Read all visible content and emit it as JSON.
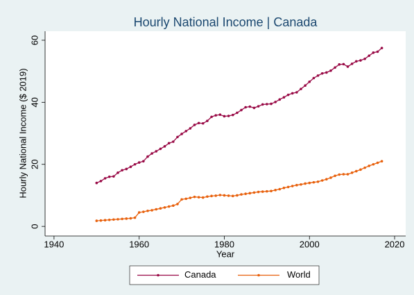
{
  "chart_data": {
    "type": "line",
    "title": "Hourly National Income | Canada",
    "x_label": "Year",
    "y_label": "Hourly National Income ($ 2019)",
    "x": [
      1950,
      1951,
      1952,
      1953,
      1954,
      1955,
      1956,
      1957,
      1958,
      1959,
      1960,
      1961,
      1962,
      1963,
      1964,
      1965,
      1966,
      1967,
      1968,
      1969,
      1970,
      1971,
      1972,
      1973,
      1974,
      1975,
      1976,
      1977,
      1978,
      1979,
      1980,
      1981,
      1982,
      1983,
      1984,
      1985,
      1986,
      1987,
      1988,
      1989,
      1990,
      1991,
      1992,
      1993,
      1994,
      1995,
      1996,
      1997,
      1998,
      1999,
      2000,
      2001,
      2002,
      2003,
      2004,
      2005,
      2006,
      2007,
      2008,
      2009,
      2010,
      2011,
      2012,
      2013,
      2014,
      2015,
      2016,
      2017
    ],
    "series": [
      {
        "name": "Canada",
        "color": "#990a46",
        "values": [
          14.0,
          14.6,
          15.5,
          16.0,
          16.1,
          17.3,
          18.1,
          18.5,
          19.2,
          20.0,
          20.6,
          21.0,
          22.5,
          23.5,
          24.2,
          25.0,
          25.8,
          26.8,
          27.3,
          28.8,
          29.8,
          30.7,
          31.6,
          32.7,
          33.3,
          33.2,
          34.0,
          35.3,
          35.8,
          36.0,
          35.5,
          35.6,
          35.9,
          36.6,
          37.5,
          38.4,
          38.6,
          38.2,
          38.7,
          39.3,
          39.4,
          39.5,
          40.1,
          40.9,
          41.6,
          42.4,
          42.9,
          43.2,
          44.3,
          45.4,
          46.6,
          47.8,
          48.6,
          49.3,
          49.6,
          50.2,
          51.2,
          52.2,
          52.3,
          51.5,
          52.4,
          53.2,
          53.5,
          54.0,
          55.0,
          56.0,
          56.3,
          57.5
        ]
      },
      {
        "name": "World",
        "color": "#e8600c",
        "values": [
          1.8,
          1.9,
          2.0,
          2.1,
          2.2,
          2.3,
          2.4,
          2.5,
          2.6,
          2.8,
          4.5,
          4.7,
          5.0,
          5.2,
          5.5,
          5.8,
          6.1,
          6.4,
          6.7,
          7.2,
          8.7,
          8.9,
          9.2,
          9.5,
          9.4,
          9.3,
          9.6,
          9.8,
          9.9,
          10.1,
          10.0,
          9.9,
          9.8,
          10.0,
          10.3,
          10.5,
          10.7,
          10.9,
          11.1,
          11.2,
          11.3,
          11.4,
          11.7,
          12.0,
          12.4,
          12.7,
          13.0,
          13.3,
          13.5,
          13.8,
          14.0,
          14.2,
          14.4,
          14.8,
          15.2,
          15.7,
          16.3,
          16.7,
          16.8,
          16.8,
          17.3,
          17.8,
          18.3,
          18.9,
          19.5,
          20.0,
          20.5,
          21.0
        ]
      }
    ],
    "xlim": [
      1937.9,
      2022.6
    ],
    "xticks": [
      1940,
      1960,
      1980,
      2000,
      2020
    ],
    "ylim": [
      -3.1,
      62.9
    ],
    "yticks": [
      0,
      20,
      40,
      60
    ],
    "legend": "bottom"
  }
}
